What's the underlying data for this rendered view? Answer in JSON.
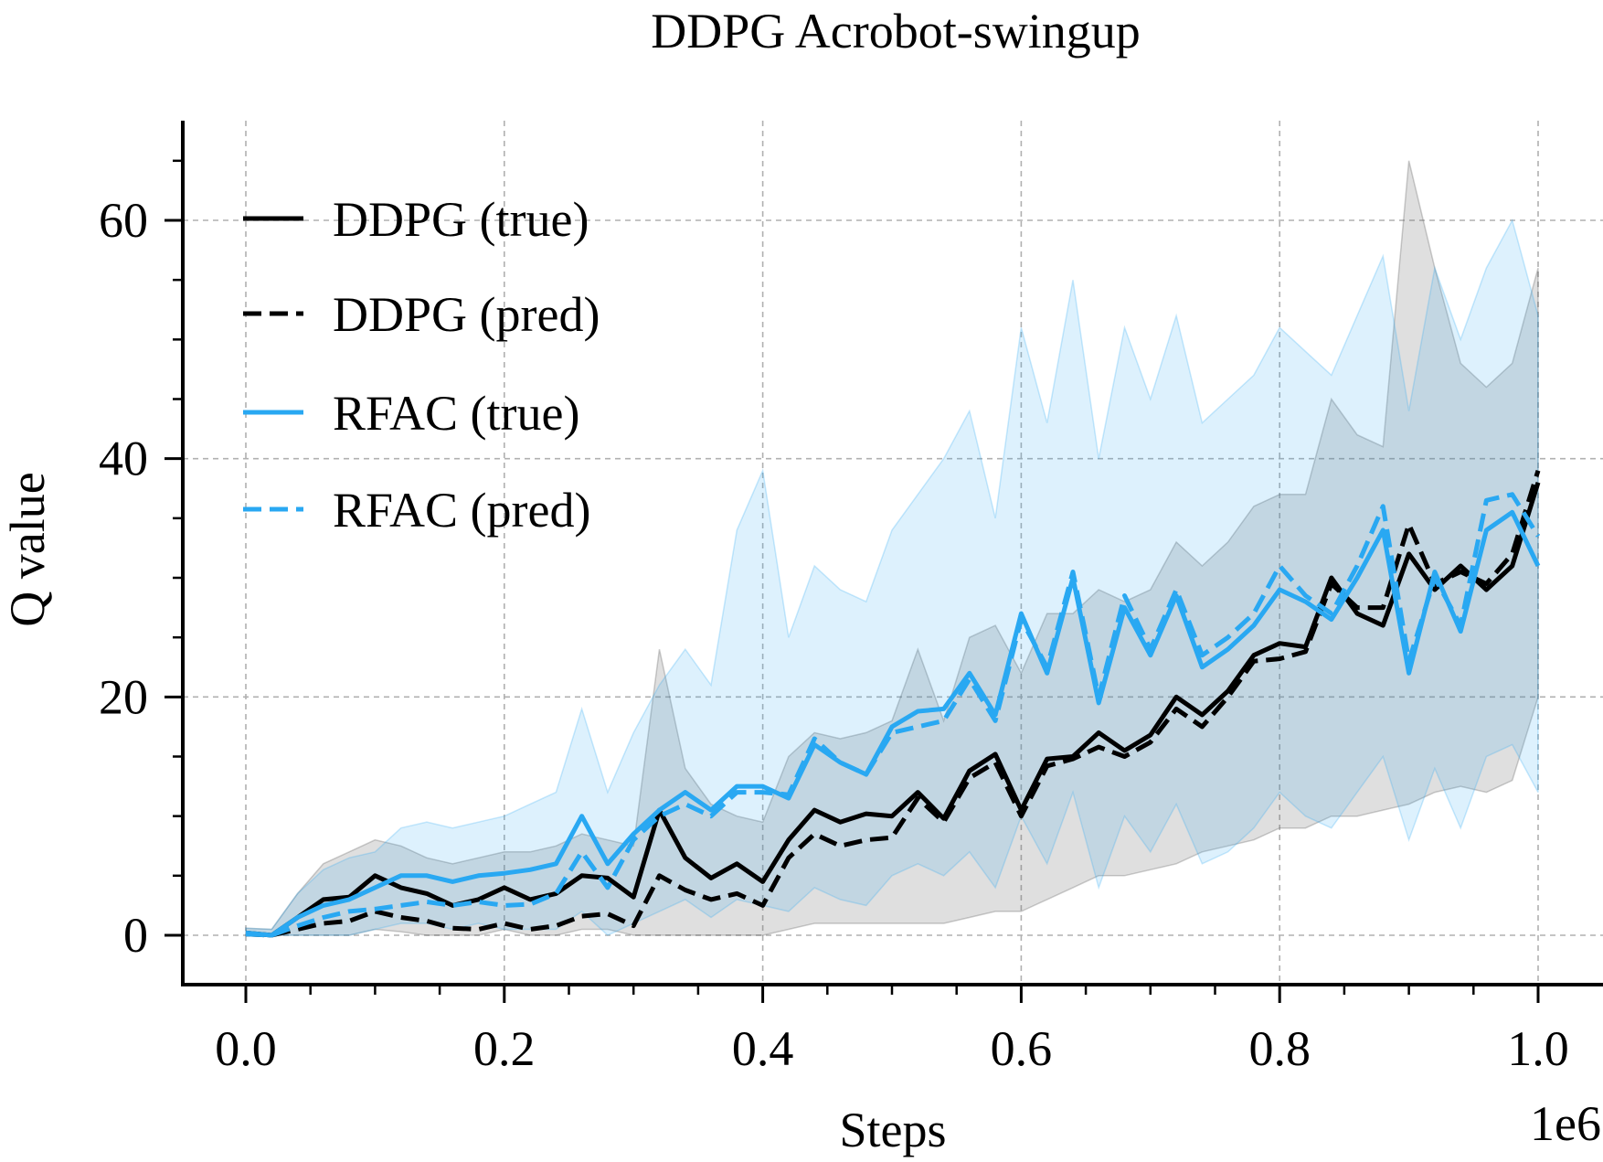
{
  "chart_data": {
    "type": "line",
    "title": "DDPG Acrobot-swingup",
    "xlabel": "Steps",
    "ylabel": "Q value",
    "x_offset_label": "1e6",
    "xlim": [
      -0.05,
      1.05
    ],
    "ylim": [
      -4.3,
      68
    ],
    "x_ticks": [
      0.0,
      0.2,
      0.4,
      0.6,
      0.8,
      1.0
    ],
    "x_tick_labels": [
      "0.0",
      "0.2",
      "0.4",
      "0.6",
      "0.8",
      "1.0"
    ],
    "y_ticks": [
      0,
      20,
      40,
      60
    ],
    "y_tick_labels": [
      "0",
      "20",
      "40",
      "60"
    ],
    "grid": true,
    "legend_position": "top-left",
    "x": [
      0.0,
      0.02,
      0.04,
      0.06,
      0.08,
      0.1,
      0.12,
      0.14,
      0.16,
      0.18,
      0.2,
      0.22,
      0.24,
      0.26,
      0.28,
      0.3,
      0.32,
      0.34,
      0.36,
      0.38,
      0.4,
      0.42,
      0.44,
      0.46,
      0.48,
      0.5,
      0.52,
      0.54,
      0.56,
      0.58,
      0.6,
      0.62,
      0.64,
      0.66,
      0.68,
      0.7,
      0.72,
      0.74,
      0.76,
      0.78,
      0.8,
      0.82,
      0.84,
      0.86,
      0.88,
      0.9,
      0.92,
      0.94,
      0.96,
      0.98,
      1.0
    ],
    "series": [
      {
        "name": "DDPG (true)",
        "color": "#000000",
        "dash": "solid",
        "values": [
          0.2,
          0.0,
          1.5,
          3.0,
          3.2,
          5.0,
          4.0,
          3.5,
          2.5,
          3.0,
          4.0,
          3.0,
          3.5,
          5.0,
          4.8,
          3.2,
          10.5,
          6.5,
          4.8,
          6.0,
          4.5,
          8.0,
          10.5,
          9.5,
          10.2,
          10.0,
          12.0,
          9.8,
          13.8,
          15.2,
          10.5,
          14.8,
          15.0,
          17.0,
          15.5,
          16.8,
          20.0,
          18.5,
          20.5,
          23.5,
          24.5,
          24.2,
          30.0,
          27.0,
          26.0,
          32.0,
          29.0,
          31.0,
          29.0,
          31.0,
          38.0
        ],
        "band_upper": [
          0.6,
          0.5,
          3.5,
          6.0,
          7.0,
          8.0,
          7.5,
          6.5,
          6.0,
          6.5,
          7.0,
          7.0,
          7.5,
          8.5,
          8.0,
          7.5,
          24.0,
          14.0,
          11.0,
          10.0,
          9.5,
          15.0,
          17.0,
          16.5,
          17.0,
          18.0,
          24.0,
          18.0,
          25.0,
          26.0,
          22.0,
          27.0,
          27.0,
          29.0,
          28.0,
          29.0,
          33.0,
          31.0,
          33.0,
          36.0,
          37.0,
          37.0,
          45.0,
          42.0,
          41.0,
          65.0,
          56.0,
          48.0,
          46.0,
          48.0,
          56.0
        ],
        "band_lower": [
          0.0,
          0.0,
          0.0,
          0.0,
          0.0,
          0.5,
          0.3,
          0.0,
          0.0,
          0.0,
          0.5,
          0.0,
          0.0,
          0.5,
          0.5,
          0.0,
          0.0,
          0.0,
          0.0,
          0.0,
          0.0,
          0.5,
          1.0,
          1.0,
          1.0,
          1.0,
          1.0,
          1.0,
          1.5,
          2.0,
          2.0,
          3.0,
          4.0,
          5.0,
          5.0,
          5.5,
          6.0,
          7.0,
          7.5,
          8.0,
          9.0,
          9.0,
          10.0,
          10.0,
          10.5,
          11.0,
          12.0,
          12.5,
          12.0,
          13.0,
          20.0
        ]
      },
      {
        "name": "DDPG (pred)",
        "color": "#000000",
        "dash": "dashed",
        "values": [
          0.1,
          0.0,
          0.5,
          1.0,
          1.2,
          2.0,
          1.5,
          1.2,
          0.6,
          0.5,
          1.0,
          0.5,
          0.8,
          1.6,
          1.8,
          0.8,
          5.0,
          3.8,
          3.0,
          3.5,
          2.5,
          6.5,
          8.5,
          7.5,
          8.0,
          8.2,
          11.5,
          9.5,
          13.2,
          14.5,
          10.0,
          14.2,
          14.8,
          15.8,
          15.0,
          16.2,
          19.0,
          17.5,
          20.0,
          23.0,
          23.2,
          23.8,
          29.5,
          27.5,
          27.5,
          34.5,
          29.5,
          30.5,
          29.5,
          32.0,
          39.0
        ]
      },
      {
        "name": "RFAC (true)",
        "color": "#29A8F2",
        "dash": "solid",
        "values": [
          0.2,
          0.0,
          1.5,
          2.5,
          3.0,
          4.0,
          5.0,
          5.0,
          4.5,
          5.0,
          5.2,
          5.5,
          6.0,
          10.0,
          6.0,
          8.5,
          10.5,
          12.0,
          10.5,
          12.5,
          12.5,
          11.5,
          16.0,
          14.5,
          13.5,
          17.5,
          18.8,
          19.0,
          22.0,
          18.5,
          27.0,
          22.0,
          30.0,
          19.5,
          27.5,
          23.5,
          28.5,
          22.5,
          24.0,
          26.0,
          29.0,
          28.0,
          26.5,
          30.0,
          34.0,
          22.0,
          30.5,
          25.5,
          34.0,
          35.5,
          31.0
        ],
        "band_upper": [
          0.6,
          0.5,
          3.5,
          5.5,
          6.5,
          7.0,
          9.0,
          9.5,
          9.0,
          9.5,
          10.0,
          11.0,
          12.0,
          19.0,
          12.0,
          17.0,
          21.0,
          24.0,
          21.0,
          34.0,
          39.0,
          25.0,
          31.0,
          29.0,
          28.0,
          34.0,
          37.0,
          40.0,
          44.0,
          35.0,
          51.0,
          43.0,
          55.0,
          40.0,
          51.0,
          45.0,
          52.0,
          43.0,
          45.0,
          47.0,
          51.0,
          49.0,
          47.0,
          52.0,
          57.0,
          44.0,
          56.0,
          50.0,
          56.0,
          60.0,
          52.0
        ],
        "band_lower": [
          0.0,
          0.0,
          0.0,
          0.0,
          0.0,
          0.5,
          1.0,
          1.0,
          0.5,
          1.0,
          0.5,
          0.5,
          0.5,
          2.0,
          0.0,
          1.0,
          2.0,
          3.0,
          1.5,
          3.0,
          2.5,
          2.0,
          4.0,
          3.0,
          2.5,
          5.0,
          6.0,
          5.0,
          7.0,
          4.0,
          10.0,
          6.0,
          12.0,
          4.0,
          10.0,
          7.0,
          11.0,
          6.0,
          7.0,
          9.0,
          12.0,
          10.0,
          9.0,
          12.0,
          15.0,
          8.0,
          14.0,
          9.0,
          15.0,
          16.0,
          12.0
        ]
      },
      {
        "name": "RFAC (pred)",
        "color": "#29A8F2",
        "dash": "dashed",
        "values": [
          0.1,
          0.0,
          0.8,
          1.5,
          2.0,
          2.2,
          2.5,
          2.8,
          2.5,
          2.8,
          2.5,
          2.6,
          3.5,
          7.0,
          4.0,
          8.0,
          10.0,
          11.0,
          10.0,
          12.0,
          12.0,
          11.8,
          16.5,
          14.5,
          13.5,
          17.0,
          17.5,
          18.0,
          21.5,
          18.0,
          26.5,
          22.5,
          30.5,
          20.0,
          28.5,
          24.0,
          29.0,
          23.5,
          25.0,
          27.0,
          31.0,
          28.5,
          27.0,
          31.0,
          36.0,
          23.0,
          30.0,
          26.0,
          36.5,
          37.0,
          33.5
        ]
      }
    ]
  }
}
